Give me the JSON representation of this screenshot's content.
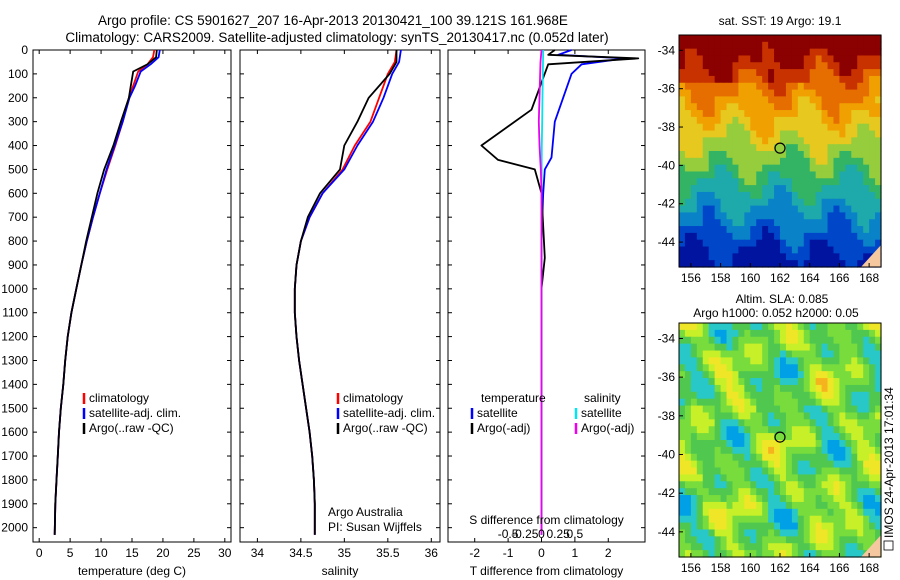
{
  "figure": {
    "title_line1": "Argo profile: CS 5901627_207 16-Apr-2013 20130421_100 39.121S 161.968E",
    "title_line2": "Climatology: CARS2009. Satellite-adjusted climatology: synTS_20130417.nc (0.052d later)",
    "credit_line1": "Argo Australia",
    "credit_line2": "PI: Susan Wijffels",
    "stamp": "IMOS 24-Apr-2013 17:01:34"
  },
  "colors": {
    "climatology": "#ff0000",
    "satellite": "#0000ff",
    "argo": "#000000",
    "sal_satellite": "#00e5ee",
    "sal_argo": "#ee00ee"
  },
  "chart_data": [
    {
      "type": "line",
      "id": "temperature",
      "xlabel": "temperature (deg C)",
      "xlim": [
        -1,
        31
      ],
      "xticks": [
        0,
        5,
        10,
        15,
        20,
        25,
        30
      ],
      "ylim": [
        0,
        2060
      ],
      "yticks": [
        0,
        100,
        200,
        300,
        400,
        500,
        600,
        700,
        800,
        900,
        1000,
        1100,
        1200,
        1300,
        1400,
        1500,
        1600,
        1700,
        1800,
        1900,
        2000
      ],
      "legend": [
        "climatology",
        "satellite-adj. clim.",
        "Argo(..raw -QC)"
      ],
      "series": [
        {
          "name": "climatology",
          "color": "#ff0000",
          "x": [
            18.6,
            18.4,
            17.5,
            16,
            15.2,
            14.5,
            13.5,
            12.3,
            11,
            9.8,
            8.7,
            7.7,
            6.8,
            6,
            5.2,
            4.6,
            4.2,
            3.9,
            3.5,
            3.2,
            3,
            2.8,
            2.6,
            2.5
          ],
          "y": [
            0,
            30,
            60,
            90,
            150,
            200,
            300,
            400,
            500,
            600,
            700,
            800,
            900,
            1000,
            1100,
            1200,
            1300,
            1400,
            1500,
            1600,
            1700,
            1800,
            1900,
            2030
          ]
        },
        {
          "name": "satellite-adj. clim.",
          "color": "#0000ff",
          "x": [
            19.5,
            19.3,
            18,
            16.4,
            15.5,
            14.6,
            13.5,
            12.2,
            10.9,
            9.8,
            8.7,
            7.7,
            6.8,
            6,
            5.2,
            4.6,
            4.2,
            3.9,
            3.5,
            3.2,
            3,
            2.8,
            2.6,
            2.5
          ],
          "y": [
            0,
            30,
            60,
            90,
            150,
            200,
            300,
            400,
            500,
            600,
            700,
            800,
            900,
            1000,
            1100,
            1200,
            1300,
            1400,
            1500,
            1600,
            1700,
            1800,
            1900,
            2030
          ]
        },
        {
          "name": "Argo(..raw -QC)",
          "color": "#000000",
          "x": [
            19,
            18.9,
            17.5,
            15.2,
            14.8,
            14.5,
            13.2,
            12,
            10.5,
            9.4,
            8.5,
            7.6,
            6.8,
            6,
            5.2,
            4.6,
            4.2,
            3.9,
            3.5,
            3.2,
            3,
            2.8,
            2.6,
            2.5
          ],
          "y": [
            0,
            30,
            60,
            90,
            150,
            200,
            300,
            400,
            500,
            600,
            700,
            800,
            900,
            1000,
            1100,
            1200,
            1300,
            1400,
            1500,
            1600,
            1700,
            1800,
            1900,
            2030
          ]
        }
      ]
    },
    {
      "type": "line",
      "id": "salinity",
      "xlabel": "salinity",
      "xlim": [
        33.8,
        36.1
      ],
      "xticks": [
        34,
        34.5,
        35,
        35.5,
        36
      ],
      "ylim": [
        0,
        2060
      ],
      "legend": [
        "climatology",
        "satellite-adj. clim.",
        "Argo(..raw -QC)"
      ],
      "series": [
        {
          "name": "climatology",
          "color": "#ff0000",
          "x": [
            35.6,
            35.58,
            35.5,
            35.4,
            35.3,
            35.12,
            34.98,
            34.75,
            34.6,
            34.5,
            34.45,
            34.43,
            34.43,
            34.45,
            34.48,
            34.52,
            34.56,
            34.6,
            34.63,
            34.65,
            34.66,
            34.66
          ],
          "y": [
            0,
            50,
            100,
            200,
            300,
            400,
            500,
            600,
            700,
            800,
            900,
            1000,
            1100,
            1200,
            1300,
            1400,
            1500,
            1600,
            1700,
            1800,
            1900,
            2030
          ]
        },
        {
          "name": "satellite-adj. clim.",
          "color": "#0000ff",
          "x": [
            35.65,
            35.63,
            35.55,
            35.45,
            35.33,
            35.15,
            35,
            34.75,
            34.6,
            34.5,
            34.45,
            34.43,
            34.43,
            34.45,
            34.48,
            34.52,
            34.56,
            34.6,
            34.63,
            34.65,
            34.66,
            34.66
          ],
          "y": [
            0,
            50,
            100,
            200,
            300,
            400,
            500,
            600,
            700,
            800,
            900,
            1000,
            1100,
            1200,
            1300,
            1400,
            1500,
            1600,
            1700,
            1800,
            1900,
            2030
          ]
        },
        {
          "name": "Argo(..raw -QC)",
          "color": "#000000",
          "x": [
            35.6,
            35.6,
            35.52,
            35.28,
            35.15,
            35,
            34.95,
            34.72,
            34.58,
            34.5,
            34.45,
            34.43,
            34.43,
            34.45,
            34.48,
            34.52,
            34.56,
            34.6,
            34.63,
            34.65,
            34.66,
            34.66
          ],
          "y": [
            0,
            50,
            100,
            200,
            300,
            400,
            500,
            600,
            700,
            800,
            900,
            1000,
            1100,
            1200,
            1300,
            1400,
            1500,
            1600,
            1700,
            1800,
            1900,
            2030
          ]
        }
      ]
    },
    {
      "type": "line",
      "id": "difference",
      "xlabel": "T difference from climatology",
      "xlabel2": "S difference from climatology",
      "xlim": [
        -2.8,
        3.1
      ],
      "xticks": [
        -2,
        -1,
        0,
        1,
        2
      ],
      "xticks2": [
        -0.5,
        -0.25,
        0,
        0.25,
        0.5
      ],
      "xticks2_labels": [
        "-0.5",
        "-0.25",
        "0",
        "0.25",
        "0.5"
      ],
      "ylim": [
        0,
        2060
      ],
      "legend_headers": [
        "temperature",
        "salinity"
      ],
      "legend": [
        "satellite",
        "Argo(-adj)",
        "satellite",
        "Argo(-adj)"
      ],
      "series": [
        {
          "name": "satellite",
          "quantity": "temperature",
          "color": "#0000ff",
          "x": [
            0.9,
            0.5,
            2.5,
            1.2,
            0.9,
            0.4,
            0.3,
            0.1,
            0.05,
            0,
            0,
            0,
            0
          ],
          "y": [
            0,
            20,
            35,
            60,
            100,
            300,
            450,
            500,
            600,
            800,
            1000,
            1500,
            2030
          ]
        },
        {
          "name": "Argo(-adj)",
          "quantity": "temperature",
          "color": "#000000",
          "x": [
            0.4,
            0.2,
            2.9,
            0.2,
            -0.3,
            -1.8,
            -1.3,
            -0.2,
            0,
            0.1,
            0,
            0,
            0
          ],
          "y": [
            0,
            20,
            35,
            60,
            250,
            400,
            460,
            500,
            600,
            870,
            1000,
            1500,
            2030
          ]
        },
        {
          "name": "satellite",
          "quantity": "salinity",
          "color": "#00e5ee",
          "x": [
            0.05,
            0.04,
            0.03,
            0.02,
            0.01,
            0,
            0,
            0
          ],
          "y": [
            0,
            100,
            200,
            300,
            400,
            600,
            1200,
            2030
          ]
        },
        {
          "name": "Argo(-adj)",
          "quantity": "salinity",
          "color": "#ee00ee",
          "x": [
            0,
            -0.03,
            -0.05,
            -0.08,
            -0.06,
            -0.02,
            0,
            0
          ],
          "y": [
            0,
            50,
            150,
            300,
            400,
            500,
            600,
            2030
          ]
        }
      ]
    },
    {
      "type": "heatmap",
      "id": "sst-map",
      "title": "sat. SST: 19 Argo: 19.1",
      "xticks": [
        156,
        158,
        160,
        162,
        164,
        166,
        168
      ],
      "yticks": [
        -34,
        -36,
        -38,
        -40,
        -42,
        -44
      ],
      "xlim": [
        155.2,
        168.8
      ],
      "ylim": [
        -45.3,
        -33.2
      ],
      "argo_position": [
        162,
        -39.1
      ],
      "colormap": [
        "#8b0000",
        "#c83200",
        "#e66e00",
        "#f0a000",
        "#e6c81e",
        "#96cd3c",
        "#32b464",
        "#1eaaaa",
        "#0a82c8",
        "#0046c8",
        "#0014a0"
      ]
    },
    {
      "type": "heatmap",
      "id": "sla-map",
      "title": "Altim. SLA: 0.085",
      "subtitle": "Argo h1000: 0.052 h2000: 0.05",
      "xticks": [
        156,
        158,
        160,
        162,
        164,
        166,
        168
      ],
      "yticks": [
        -34,
        -36,
        -38,
        -40,
        -42,
        -44
      ],
      "xlim": [
        155.2,
        168.8
      ],
      "ylim": [
        -45.3,
        -33.2
      ],
      "argo_position": [
        162,
        -39.1
      ],
      "colormap": [
        "#00a0e6",
        "#28c8c8",
        "#50c850",
        "#78dc3c",
        "#c8f028",
        "#f0e628",
        "#f5b41e"
      ]
    }
  ]
}
